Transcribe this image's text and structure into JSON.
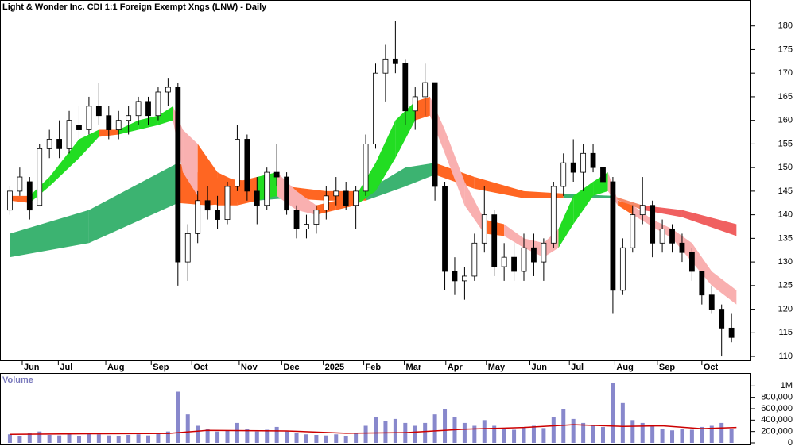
{
  "chart_data": [
    {
      "type": "candlestick",
      "title": "Light & Wonder Inc. CDI 1:1 Foreign Exempt Xngs (LNW) - Daily",
      "xlim": [
        -1,
        75
      ],
      "xticks": [
        {
          "value": 1.25,
          "label": "Jun"
        },
        {
          "value": 4.9,
          "label": "Jul"
        },
        {
          "value": 9.7,
          "label": "Aug"
        },
        {
          "value": 14.3,
          "label": "Sep"
        },
        {
          "value": 18.4,
          "label": "Oct"
        },
        {
          "value": 23.2,
          "label": "Nov"
        },
        {
          "value": 27.5,
          "label": "Dec"
        },
        {
          "value": 31.7,
          "label": "2025"
        },
        {
          "value": 35.8,
          "label": "Feb"
        },
        {
          "value": 39.9,
          "label": "Mar"
        },
        {
          "value": 44.1,
          "label": "Apr"
        },
        {
          "value": 48.2,
          "label": "May"
        },
        {
          "value": 52.6,
          "label": "Jun"
        },
        {
          "value": 56.6,
          "label": "Jul"
        },
        {
          "value": 61.2,
          "label": "Aug"
        },
        {
          "value": 65.5,
          "label": "Sep"
        },
        {
          "value": 70,
          "label": "Oct"
        }
      ],
      "ylim": [
        109,
        185.5
      ],
      "yticks": [
        110,
        115,
        120,
        125,
        130,
        135,
        140,
        145,
        150,
        155,
        160,
        165,
        170,
        175,
        180
      ],
      "open": [
        141,
        145,
        147,
        142,
        154,
        156,
        154,
        159,
        158,
        163,
        161,
        158,
        160,
        161,
        164,
        161,
        166,
        167,
        130,
        136,
        143,
        141,
        139,
        146,
        156,
        145,
        142,
        149,
        148,
        141,
        137,
        138,
        141,
        144,
        145,
        142,
        145,
        155,
        170,
        173,
        172,
        162,
        165,
        168,
        146,
        128,
        126,
        127,
        134,
        140,
        129,
        131,
        128,
        133,
        130,
        134,
        146,
        151,
        149,
        153,
        150,
        147,
        124,
        133,
        140,
        142,
        134,
        137,
        134,
        132,
        128,
        123,
        120,
        116
      ],
      "high": [
        146,
        150,
        148,
        155,
        158,
        160,
        162,
        163,
        165,
        168,
        163,
        162,
        163,
        165,
        165,
        167,
        169,
        168,
        138,
        145,
        146,
        144,
        147,
        159,
        157,
        148,
        150,
        155,
        149,
        142,
        140,
        142,
        146,
        148,
        147,
        146,
        157,
        172,
        176,
        181,
        173,
        167,
        172,
        168,
        147,
        131,
        129,
        136,
        146,
        141,
        134,
        134,
        136,
        136,
        135,
        147,
        153,
        156,
        155,
        155,
        152,
        148,
        135,
        142,
        148,
        143,
        139,
        138,
        136,
        133,
        128,
        125,
        121,
        119
      ],
      "low": [
        140,
        144,
        139,
        142,
        152,
        152,
        153,
        156,
        157,
        159,
        156,
        156,
        157,
        159,
        159,
        160,
        163,
        125,
        126,
        134,
        139,
        137,
        138,
        145,
        143,
        138,
        141,
        146,
        140,
        135,
        135,
        136,
        139,
        142,
        141,
        137,
        144,
        154,
        164,
        170,
        159,
        158,
        161,
        143,
        124,
        123,
        122,
        126,
        132,
        127,
        126,
        126,
        126,
        127,
        126,
        133,
        144,
        147,
        145,
        149,
        145,
        119,
        123,
        132,
        138,
        131,
        132,
        132,
        130,
        126,
        121,
        119,
        110,
        113
      ],
      "close": [
        145,
        148,
        141,
        154,
        156,
        154,
        160,
        158,
        163,
        161,
        158,
        160,
        161,
        164,
        161,
        166,
        167,
        130,
        136,
        143,
        141,
        139,
        146,
        156,
        145,
        142,
        149,
        148,
        141,
        137,
        138,
        141,
        144,
        145,
        142,
        145,
        155,
        170,
        173,
        172,
        162,
        165,
        168,
        146,
        128,
        126,
        127,
        134,
        140,
        129,
        131,
        128,
        133,
        130,
        134,
        146,
        151,
        149,
        153,
        150,
        147,
        124,
        133,
        140,
        142,
        134,
        137,
        134,
        132,
        128,
        123,
        120,
        116,
        114
      ],
      "up_color": "#ffffff",
      "down_color": "#000000",
      "ribbons": [
        {
          "x": [
            0,
            8,
            17,
            20,
            25,
            28,
            32,
            36,
            40,
            43,
            47,
            52,
            56,
            61,
            64,
            68,
            73.5
          ],
          "upper": [
            136,
            141,
            151,
            148,
            147,
            146,
            145,
            145,
            150,
            151,
            148,
            145,
            144.5,
            144,
            142,
            141,
            138
          ],
          "lower": [
            131,
            134,
            142.5,
            142,
            143,
            143.5,
            143,
            143,
            146,
            148.5,
            145.5,
            143.5,
            143.5,
            143.5,
            141,
            139.5,
            135.5
          ],
          "colors": [
            "#3cb371",
            "#3cb371",
            "#ff6622",
            "#ff6622",
            "#3cb371",
            "#ff6622",
            "#ff6622",
            "#3cb371",
            "#3cb371",
            "#ff6622",
            "#ff6622",
            "#ff6622",
            "#3cb371",
            "#f58a6a",
            "#f06060",
            "#f06060"
          ]
        },
        {
          "x": [
            0,
            2,
            4,
            7,
            9,
            11,
            13,
            15,
            16.5,
            17.5,
            19,
            21,
            23,
            25,
            27,
            29,
            31,
            33,
            35,
            37,
            39,
            41,
            42.5,
            44,
            46,
            48,
            50,
            52,
            54,
            55.5,
            57,
            59,
            60.5,
            61.5,
            63,
            65,
            67,
            69,
            71,
            73.5
          ],
          "upper": [
            144,
            144,
            148,
            156,
            158,
            158,
            160,
            161,
            163,
            158,
            155,
            149,
            147,
            148,
            149,
            145,
            142,
            143,
            144,
            151,
            160,
            164,
            165,
            158,
            147,
            139,
            138,
            135,
            134,
            137,
            144,
            147,
            149,
            143,
            142,
            139,
            137,
            134,
            128,
            124
          ],
          "lower": [
            143,
            142.5,
            146,
            152,
            156.5,
            157,
            158,
            159,
            160,
            149,
            144,
            142,
            142,
            143,
            144,
            141,
            140,
            141,
            142,
            145,
            152,
            160,
            161,
            153,
            142,
            136,
            135.5,
            133,
            131,
            133,
            138,
            144,
            145,
            142,
            140,
            137.5,
            135,
            130,
            125,
            121
          ],
          "colors": [
            "#ff6622",
            "#22dd22",
            "#22dd22",
            "#22dd22",
            "#ff6622",
            "#22dd22",
            "#22dd22",
            "#22dd22",
            "#f9b0b0",
            "#f9b0b0",
            "#ff6622",
            "#ff6622",
            "#ff6622",
            "#22dd22",
            "#f9b0b0",
            "#f9b0b0",
            "#ff6622",
            "#ff6622",
            "#22dd22",
            "#22dd22",
            "#22dd22",
            "#ff6622",
            "#f9b0b0",
            "#f9b0b0",
            "#f9b0b0",
            "#ff6622",
            "#f9b0b0",
            "#f9b0b0",
            "#f9b0b0",
            "#22dd22",
            "#22dd22",
            "#22dd22",
            "#f9b0b0",
            "#ff6622",
            "#f9b0b0",
            "#f9b0b0",
            "#f9b0b0",
            "#f9b0b0",
            "#f9b0b0"
          ]
        }
      ]
    },
    {
      "type": "bar",
      "title": "Volume",
      "xlim": [
        -1,
        75
      ],
      "ylim": [
        0,
        1200000
      ],
      "yticks": [
        {
          "value": 1000000,
          "label": "1M"
        },
        {
          "value": 800000,
          "label": "800,000"
        },
        {
          "value": 600000,
          "label": "600,000"
        },
        {
          "value": 400000,
          "label": "400,000"
        },
        {
          "value": 200000,
          "label": "200,000"
        },
        0
      ],
      "color": "#8888cc",
      "values": [
        150000,
        120000,
        180000,
        200000,
        140000,
        130000,
        160000,
        120000,
        170000,
        150000,
        130000,
        120000,
        140000,
        150000,
        130000,
        160000,
        200000,
        900000,
        500000,
        300000,
        250000,
        200000,
        220000,
        350000,
        250000,
        200000,
        230000,
        280000,
        200000,
        180000,
        150000,
        140000,
        130000,
        150000,
        120000,
        180000,
        300000,
        450000,
        380000,
        420000,
        350000,
        300000,
        350000,
        500000,
        600000,
        450000,
        350000,
        300000,
        400000,
        300000,
        250000,
        230000,
        280000,
        300000,
        260000,
        450000,
        600000,
        420000,
        350000,
        300000,
        280000,
        1050000,
        700000,
        400000,
        350000,
        300000,
        250000,
        220000,
        250000,
        230000,
        280000,
        300000,
        350000,
        250000
      ],
      "ma_color": "#cc0000",
      "ma_x": [
        0,
        8,
        16,
        20,
        28,
        34,
        40,
        46,
        52,
        57,
        62,
        66,
        70,
        73.5
      ],
      "ma_values": [
        150000,
        160000,
        165000,
        220000,
        210000,
        170000,
        180000,
        240000,
        270000,
        320000,
        290000,
        300000,
        250000,
        270000
      ]
    }
  ]
}
